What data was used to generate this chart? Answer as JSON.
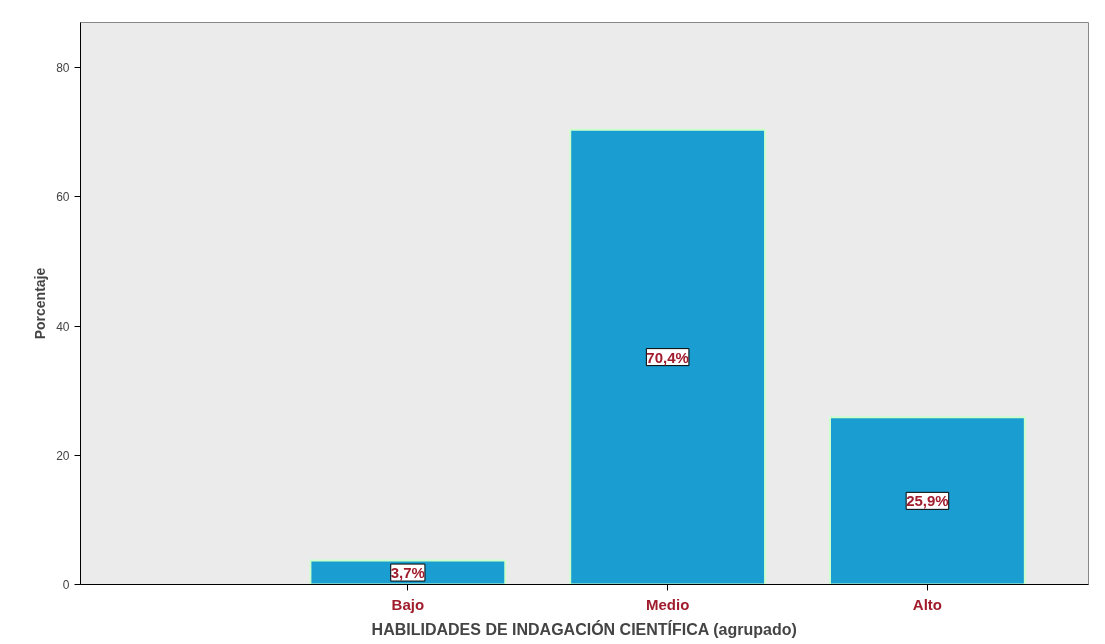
{
  "chart_data": {
    "type": "bar",
    "xlabel": "HABILIDADES DE INDAGACIÓN CIENTÍFICA (agrupado)",
    "ylabel": "Porcentaje",
    "categories": [
      "Bajo",
      "Medio",
      "Alto"
    ],
    "values": [
      3.7,
      70.4,
      25.9
    ],
    "value_labels": [
      "3,7%",
      "70,4%",
      "25,9%"
    ],
    "color": "#1a9dd0",
    "ylim": [
      0,
      87
    ],
    "yticks": [
      0,
      20,
      40,
      60,
      80
    ],
    "grid": false
  }
}
